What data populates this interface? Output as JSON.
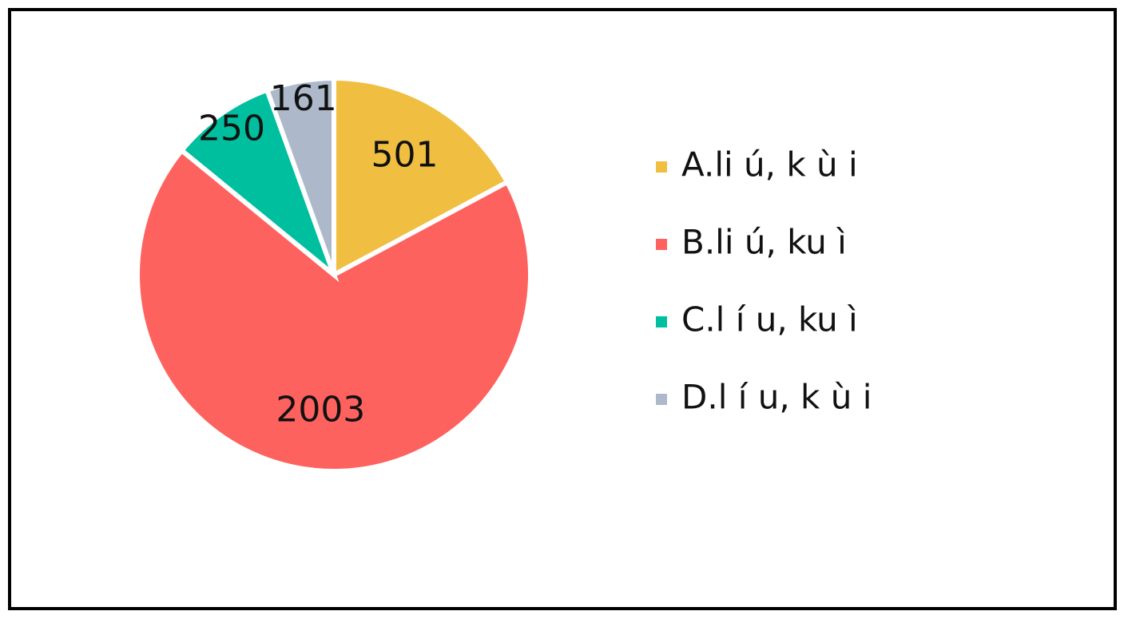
{
  "chart_data": {
    "type": "pie",
    "categories": [
      "A.li ú, k ù i",
      "B.li ú, ku ì",
      "C.l í u, ku ì",
      "D.l í u, k ù i"
    ],
    "values": [
      501,
      2003,
      250,
      161
    ],
    "colors": [
      "#f0be41",
      "#fe625f",
      "#00bf9f",
      "#adb9ca"
    ],
    "legend": "right"
  }
}
